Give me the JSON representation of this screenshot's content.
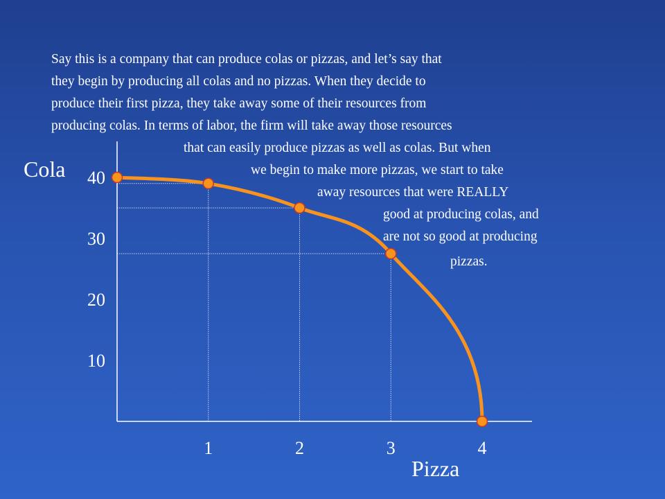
{
  "annotation": {
    "lines": [
      "Say this is a company that can produce colas or pizzas, and let’s say that",
      "they begin by producing all colas and no pizzas. When they decide to",
      "produce their first pizza, they take away some of their resources from",
      "producing colas. In terms of labor, the firm will take away those resources",
      "that can easily produce pizzas as well as colas. But when",
      "we begin to make more pizzas, we start to take",
      "away resources that were REALLY",
      "good at producing colas, and",
      "are not so good at producing",
      "pizzas."
    ]
  },
  "chart_data": {
    "type": "line",
    "title": "",
    "xlabel": "Pizza",
    "ylabel": "Cola",
    "xlim": [
      0,
      4
    ],
    "ylim": [
      0,
      40
    ],
    "x_ticks": [
      "1",
      "2",
      "3",
      "4"
    ],
    "y_ticks": [
      "10",
      "20",
      "30",
      "40"
    ],
    "grid": false,
    "series": [
      {
        "points": [
          {
            "x": 0,
            "y": 40
          },
          {
            "x": 1,
            "y": 39
          },
          {
            "x": 2,
            "y": 35
          },
          {
            "x": 3,
            "y": 27.5
          },
          {
            "x": 4,
            "y": 0
          }
        ]
      }
    ],
    "colors": {
      "curve": "#f7931e",
      "marker": "#f7941d",
      "marker_edge": "#c0392b",
      "axis": "#ffffff",
      "guide": "#c9d6f2"
    }
  }
}
